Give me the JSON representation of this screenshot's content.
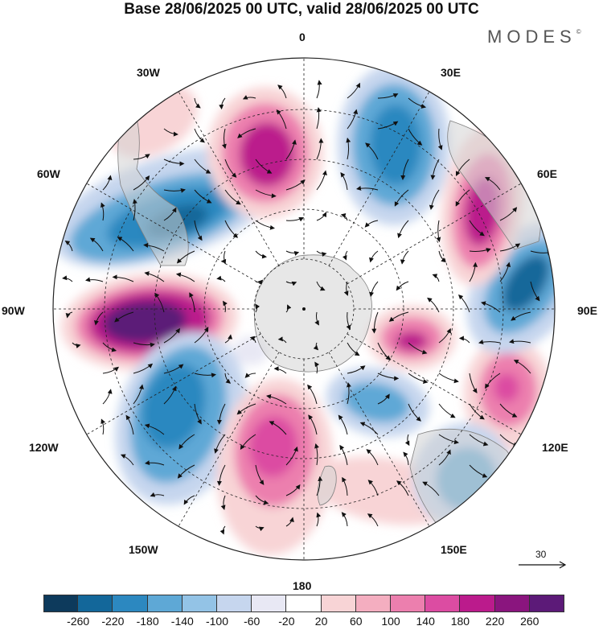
{
  "title": "Base 28/06/2025 00 UTC, valid 28/06/2025 00 UTC",
  "brand": "MODES",
  "brand_mark": "©",
  "longitude_labels": {
    "lon_0": "0",
    "lon_30e": "30E",
    "lon_60e": "60E",
    "lon_90e": "90E",
    "lon_120e": "120E",
    "lon_150e": "150E",
    "lon_180": "180",
    "lon_150w": "150W",
    "lon_120w": "120W",
    "lon_90w": "90W",
    "lon_60w": "60W",
    "lon_30w": "30W"
  },
  "vector_scale": {
    "label": "30"
  },
  "colorbar": {
    "colors": [
      "#0d3a5c",
      "#13679a",
      "#2c88c0",
      "#5ea8d6",
      "#93c3e6",
      "#c6d6ee",
      "#e8e8f4",
      "#ffffff",
      "#f8d4d6",
      "#f4aec0",
      "#ec7fae",
      "#dc4ca2",
      "#bb1b8c",
      "#8a157e",
      "#5c1a78"
    ],
    "tick_labels": [
      "-260",
      "-220",
      "-180",
      "-140",
      "-100",
      "-60",
      "-20",
      "20",
      "60",
      "100",
      "140",
      "180",
      "220",
      "260"
    ]
  },
  "colors": {
    "land": "#d4d4d4",
    "land_border": "#808080",
    "graticule": "#222222",
    "vector": "#111111"
  }
}
